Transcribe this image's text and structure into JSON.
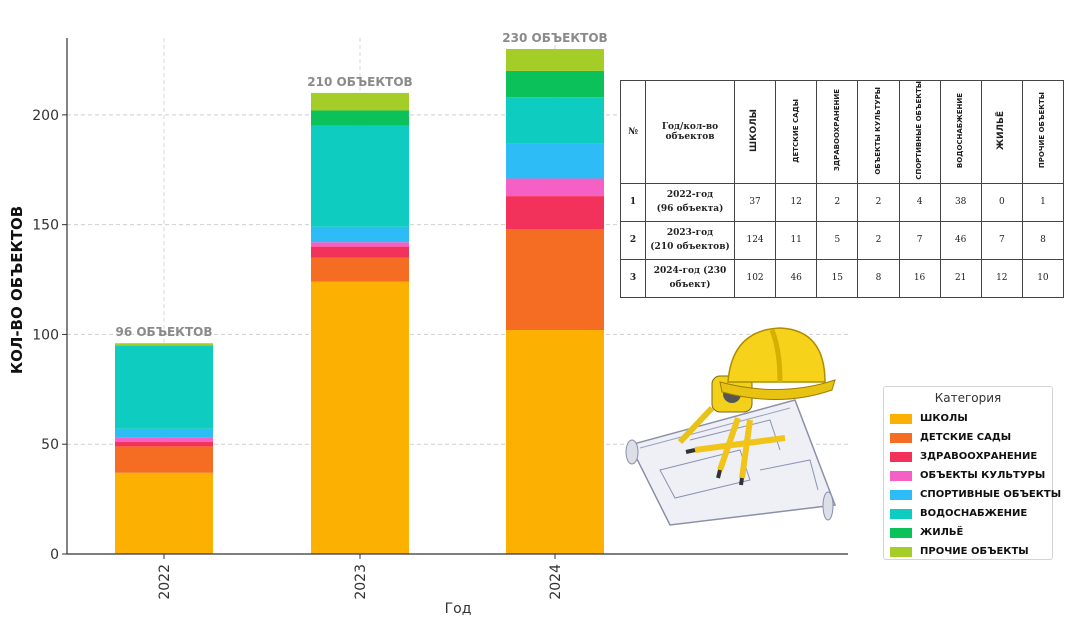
{
  "chart_data": {
    "type": "bar",
    "stacked": true,
    "categories": [
      "2022",
      "2023",
      "2024"
    ],
    "xlabel": "Год",
    "ylabel": "КОЛ-ВО ОБЪЕКТОВ",
    "ylim": [
      0,
      235
    ],
    "yticks": [
      0,
      50,
      100,
      150,
      200
    ],
    "grid": true,
    "bar_labels": [
      "96 ОБЪЕКТОВ",
      "210 ОБЪЕКТОВ",
      "230 ОБЪЕКТОВ"
    ],
    "legend_title": "Категория",
    "legend_position": "bottom-right",
    "series": [
      {
        "name": "ШКОЛЫ",
        "color": "#fbb002",
        "values": [
          37,
          124,
          102
        ]
      },
      {
        "name": "ДЕТСКИЕ САДЫ",
        "color": "#f46d23",
        "values": [
          12,
          11,
          46
        ]
      },
      {
        "name": "ЗДРАВООХРАНЕНИЕ",
        "color": "#f2325a",
        "values": [
          2,
          5,
          15
        ]
      },
      {
        "name": "ОБЪЕКТЫ КУЛЬТУРЫ",
        "color": "#f560c5",
        "values": [
          2,
          2,
          8
        ]
      },
      {
        "name": "СПОРТИВНЫЕ ОБЪЕКТЫ",
        "color": "#2dbcf5",
        "values": [
          4,
          7,
          16
        ]
      },
      {
        "name": "ВОДОСНАБЖЕНИЕ",
        "color": "#0fccc0",
        "values": [
          38,
          46,
          21
        ]
      },
      {
        "name": "ЖИЛЬЁ",
        "color": "#0bc25a",
        "values": [
          0,
          7,
          12
        ]
      },
      {
        "name": "ПРОЧИЕ ОБЪЕКТЫ",
        "color": "#a4cd28",
        "values": [
          1,
          8,
          10
        ]
      }
    ]
  },
  "table": {
    "col_num": "№",
    "col_year": "Год/кол-во объектов",
    "headers": [
      "ШКОЛЫ",
      "ДЕТСКИЕ САДЫ",
      "ЗДРАВООХРАНЕНИЕ",
      "ОБЪЕКТЫ КУЛЬТУРЫ",
      "СПОРТИВНЫЕ ОБЪЕКТЫ",
      "ВОДОСНАБЖЕНИЕ",
      "ЖИЛЬЁ",
      "ПРОЧИЕ ОБЪЕКТЫ"
    ],
    "rows": [
      {
        "n": "1",
        "year_a": "2022-год",
        "year_b": "(96 объекта)",
        "values": [
          "37",
          "12",
          "2",
          "2",
          "4",
          "38",
          "0",
          "1"
        ]
      },
      {
        "n": "2",
        "year_a": "2023-год",
        "year_b": "(210 объектов)",
        "values": [
          "124",
          "11",
          "5",
          "2",
          "7",
          "46",
          "7",
          "8"
        ]
      },
      {
        "n": "3",
        "year_a": "2024-год (230",
        "year_b": "объект)",
        "values": [
          "102",
          "46",
          "15",
          "8",
          "16",
          "21",
          "12",
          "10"
        ]
      }
    ]
  }
}
